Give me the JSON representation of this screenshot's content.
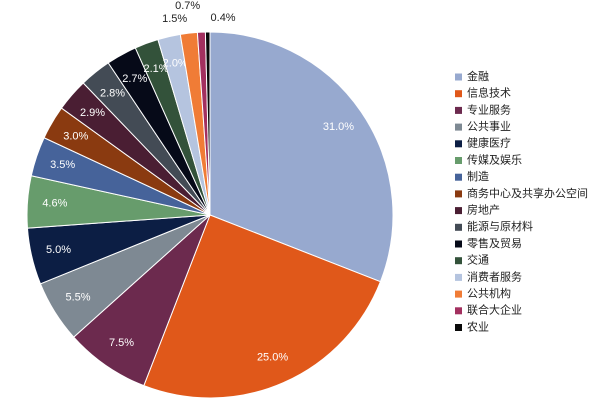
{
  "chart_data": {
    "type": "pie",
    "categories": [
      "金融",
      "信息技术",
      "专业服务",
      "公共事业",
      "健康医疗",
      "传媒及娱乐",
      "制造",
      "商务中心及共享办公空间",
      "房地产",
      "能源与原材料",
      "零售及贸易",
      "交通",
      "消费者服务",
      "公共机构",
      "联合大企业",
      "农业"
    ],
    "values": [
      31.0,
      25.0,
      7.5,
      5.5,
      5.0,
      4.6,
      3.5,
      3.0,
      2.9,
      2.8,
      2.7,
      2.1,
      2.0,
      1.5,
      0.7,
      0.4
    ],
    "value_labels": [
      "31.0%",
      "25.0%",
      "7.5%",
      "5.5%",
      "5.0%",
      "4.6%",
      "3.5%",
      "3.0%",
      "2.9%",
      "2.8%",
      "2.7%",
      "2.1%",
      "2.0%",
      "1.5%",
      "0.7%",
      "0.4%"
    ],
    "colors": [
      "#97a9cf",
      "#e0581a",
      "#6c2a4e",
      "#7e8993",
      "#0c1e44",
      "#679c6c",
      "#46639a",
      "#8a3a10",
      "#4a1e33",
      "#434b55",
      "#060a18",
      "#33523a",
      "#b5c4df",
      "#f07c36",
      "#a3305f",
      "#0a0a0a"
    ],
    "legend": "right"
  }
}
